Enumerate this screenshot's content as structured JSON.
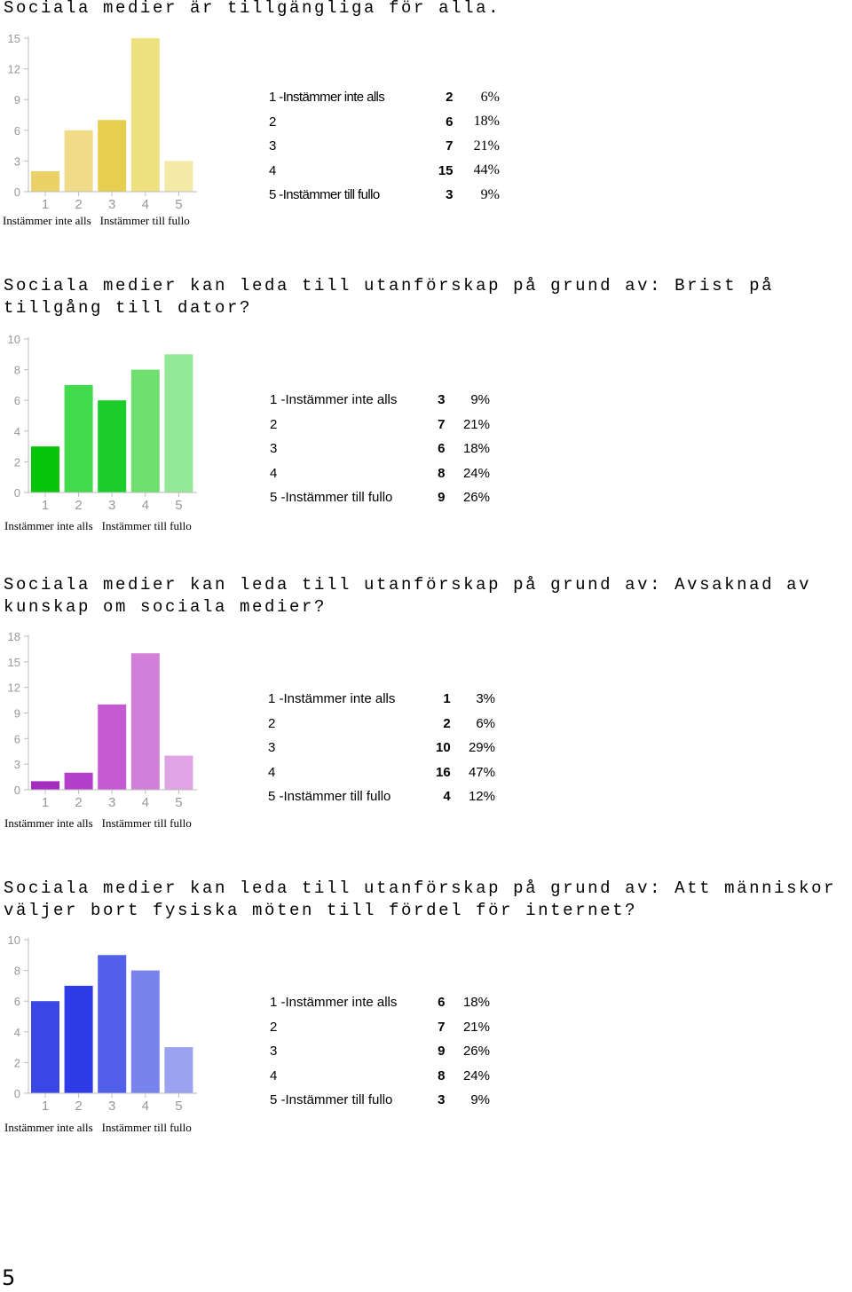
{
  "sections": [
    {
      "title": "Sociala medier är tillgängliga för alla.",
      "axis_left": "Instämmer inte alls",
      "axis_right": "Instämmer till fullo",
      "rows": [
        {
          "label": "1 -Instämmer inte alls",
          "count": "2",
          "percent": "6%"
        },
        {
          "label": "2",
          "count": "6",
          "percent": "18%"
        },
        {
          "label": "3",
          "count": "7",
          "percent": "21%"
        },
        {
          "label": "4",
          "count": "15",
          "percent": "44%"
        },
        {
          "label": "5 -Instämmer till fullo",
          "count": "3",
          "percent": "9%"
        }
      ]
    },
    {
      "title": "Sociala medier kan leda till utanförskap på grund av: Brist på tillgång till dator?",
      "axis_left": "Instämmer inte alls",
      "axis_right": "Instämmer till fullo",
      "rows": [
        {
          "label": "1 -Instämmer inte alls",
          "count": "3",
          "percent": "9%"
        },
        {
          "label": "2",
          "count": "7",
          "percent": "21%"
        },
        {
          "label": "3",
          "count": "6",
          "percent": "18%"
        },
        {
          "label": "4",
          "count": "8",
          "percent": "24%"
        },
        {
          "label": "5 -Instämmer till fullo",
          "count": "9",
          "percent": "26%"
        }
      ]
    },
    {
      "title": "Sociala medier kan leda till utanförskap på grund av: Avsaknad av kunskap om sociala medier?",
      "axis_left": "Instämmer inte alls",
      "axis_right": "Instämmer till fullo",
      "rows": [
        {
          "label": "1 -Instämmer inte alls",
          "count": "1",
          "percent": "3%"
        },
        {
          "label": "2",
          "count": "2",
          "percent": "6%"
        },
        {
          "label": "3",
          "count": "10",
          "percent": "29%"
        },
        {
          "label": "4",
          "count": "16",
          "percent": "47%"
        },
        {
          "label": "5 -Instämmer till fullo",
          "count": "4",
          "percent": "12%"
        }
      ]
    },
    {
      "title": "Sociala medier kan leda till utanförskap på grund av: Att människor väljer bort fysiska möten till fördel för internet?",
      "axis_left": "Instämmer inte alls",
      "axis_right": "Instämmer till fullo",
      "rows": [
        {
          "label": "1 -Instämmer inte alls",
          "count": "6",
          "percent": "18%"
        },
        {
          "label": "2",
          "count": "7",
          "percent": "21%"
        },
        {
          "label": "3",
          "count": "9",
          "percent": "26%"
        },
        {
          "label": "4",
          "count": "8",
          "percent": "24%"
        },
        {
          "label": "5 -Instämmer till fullo",
          "count": "3",
          "percent": "9%"
        }
      ]
    }
  ],
  "chart_data": [
    {
      "type": "bar",
      "categories": [
        "1",
        "2",
        "3",
        "4",
        "5"
      ],
      "values": [
        2,
        6,
        7,
        15,
        3
      ],
      "yticks": [
        "0",
        "3",
        "6",
        "9",
        "12",
        "15"
      ],
      "ylim": [
        0,
        15
      ],
      "colors": [
        "#ead168",
        "#f0dc88",
        "#e6cf4e",
        "#ede180",
        "#f4eaa8"
      ]
    },
    {
      "type": "bar",
      "categories": [
        "1",
        "2",
        "3",
        "4",
        "5"
      ],
      "values": [
        3,
        7,
        6,
        8,
        9
      ],
      "yticks": [
        "0",
        "2",
        "4",
        "6",
        "8",
        "10"
      ],
      "ylim": [
        0,
        10
      ],
      "colors": [
        "#05c60a",
        "#43da4e",
        "#1acd2b",
        "#6ee06f",
        "#93e995"
      ]
    },
    {
      "type": "bar",
      "categories": [
        "1",
        "2",
        "3",
        "4",
        "5"
      ],
      "values": [
        1,
        2,
        10,
        16,
        4
      ],
      "yticks": [
        "0",
        "3",
        "6",
        "9",
        "12",
        "15",
        "18"
      ],
      "ylim": [
        0,
        18
      ],
      "colors": [
        "#a52cc0",
        "#b43fca",
        "#c45bd2",
        "#d27fd9",
        "#dfa4e3"
      ]
    },
    {
      "type": "bar",
      "categories": [
        "1",
        "2",
        "3",
        "4",
        "5"
      ],
      "values": [
        6,
        7,
        9,
        8,
        3
      ],
      "yticks": [
        "0",
        "2",
        "4",
        "6",
        "8",
        "10"
      ],
      "ylim": [
        0,
        10
      ],
      "colors": [
        "#3a47e6",
        "#2e3ce7",
        "#525fe8",
        "#7983ed",
        "#9ba2f1"
      ]
    }
  ],
  "page_number": "5"
}
